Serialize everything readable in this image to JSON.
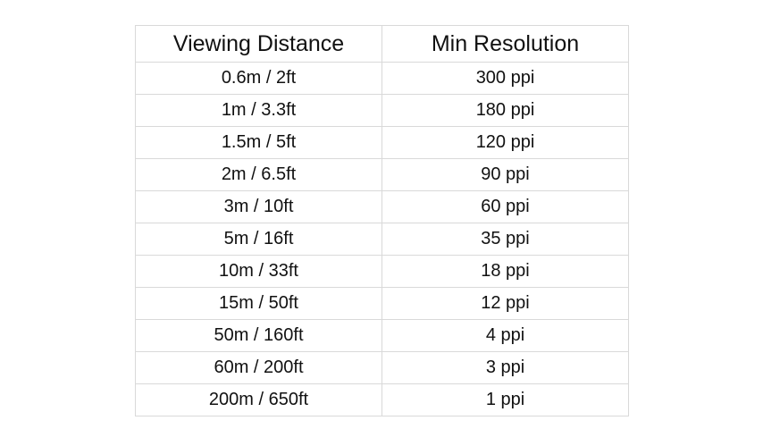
{
  "table": {
    "headers": [
      "Viewing Distance",
      "Min Resolution"
    ],
    "rows": [
      [
        "0.6m / 2ft",
        "300 ppi"
      ],
      [
        "1m / 3.3ft",
        "180 ppi"
      ],
      [
        "1.5m / 5ft",
        "120 ppi"
      ],
      [
        "2m / 6.5ft",
        "90 ppi"
      ],
      [
        "3m / 10ft",
        "60 ppi"
      ],
      [
        "5m / 16ft",
        "35 ppi"
      ],
      [
        "10m / 33ft",
        "18 ppi"
      ],
      [
        "15m / 50ft",
        "12 ppi"
      ],
      [
        "50m / 160ft",
        "4 ppi"
      ],
      [
        "60m / 200ft",
        "3 ppi"
      ],
      [
        "200m / 650ft",
        "1 ppi"
      ]
    ]
  }
}
